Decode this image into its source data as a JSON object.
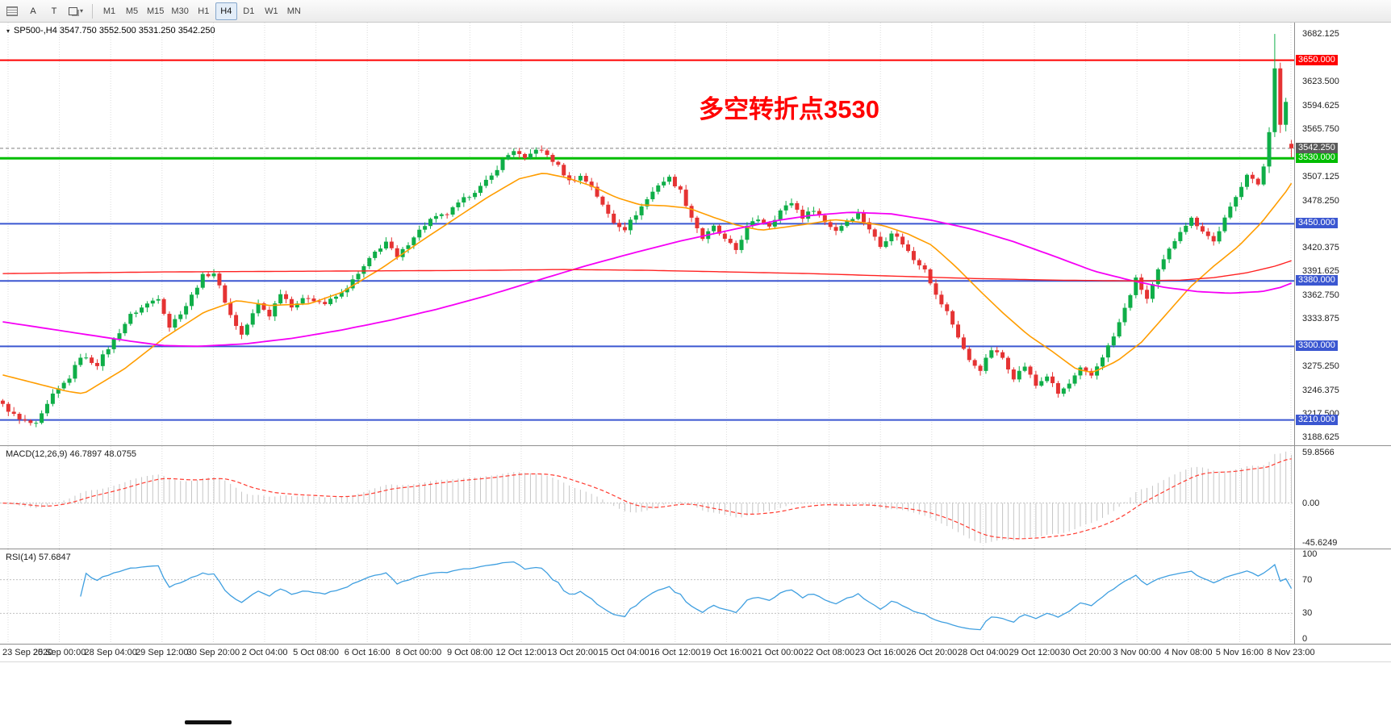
{
  "toolbar": {
    "tool_a_label": "A",
    "tool_t_label": "T",
    "timeframes": [
      "M1",
      "M5",
      "M15",
      "M30",
      "H1",
      "H4",
      "D1",
      "W1",
      "MN"
    ],
    "active_timeframe": "H4"
  },
  "chart": {
    "title_line": "SP500-,H4  3547.750 3552.500 3531.250 3542.250",
    "symbol": "SP500-",
    "timeframe": "H4",
    "annotation": {
      "text": "多空转折点3530",
      "color": "#ff0000"
    },
    "current_price": "3542.250"
  },
  "macd": {
    "title": "MACD(12,26,9) 46.7897 48.0755",
    "max_label": "59.8566",
    "zero_label": "0.00",
    "min_label": "-45.6249"
  },
  "rsi": {
    "title": "RSI(14) 57.6847",
    "scale_labels": [
      [
        100,
        "100"
      ],
      [
        70,
        "70"
      ],
      [
        30,
        "30"
      ],
      [
        0,
        "0"
      ]
    ]
  },
  "chart_data": {
    "type": "candlestick",
    "symbol": "SP500-",
    "timeframe": "H4",
    "last_ohlc": {
      "open": 3547.75,
      "high": 3552.5,
      "low": 3531.25,
      "close": 3542.25
    },
    "num_candles": 233,
    "price_range": [
      3179,
      3696
    ],
    "grid_color": "#dcdcdc",
    "colors": {
      "up": "#0fae48",
      "down": "#e53333"
    },
    "close_waypoints": [
      [
        0,
        3228
      ],
      [
        3,
        3210
      ],
      [
        6,
        3204
      ],
      [
        9,
        3240
      ],
      [
        12,
        3262
      ],
      [
        14,
        3288
      ],
      [
        17,
        3278
      ],
      [
        20,
        3308
      ],
      [
        23,
        3338
      ],
      [
        26,
        3352
      ],
      [
        28,
        3360
      ],
      [
        30,
        3324
      ],
      [
        33,
        3350
      ],
      [
        36,
        3386
      ],
      [
        38,
        3390
      ],
      [
        41,
        3338
      ],
      [
        43,
        3314
      ],
      [
        46,
        3352
      ],
      [
        48,
        3338
      ],
      [
        50,
        3366
      ],
      [
        52,
        3350
      ],
      [
        55,
        3360
      ],
      [
        58,
        3352
      ],
      [
        61,
        3365
      ],
      [
        64,
        3388
      ],
      [
        67,
        3415
      ],
      [
        69,
        3428
      ],
      [
        71,
        3408
      ],
      [
        74,
        3435
      ],
      [
        77,
        3455
      ],
      [
        80,
        3462
      ],
      [
        83,
        3480
      ],
      [
        86,
        3495
      ],
      [
        88,
        3508
      ],
      [
        90,
        3528
      ],
      [
        92,
        3540
      ],
      [
        94,
        3528
      ],
      [
        96,
        3542
      ],
      [
        98,
        3534
      ],
      [
        100,
        3520
      ],
      [
        102,
        3502
      ],
      [
        104,
        3508
      ],
      [
        106,
        3496
      ],
      [
        108,
        3472
      ],
      [
        110,
        3452
      ],
      [
        112,
        3444
      ],
      [
        114,
        3462
      ],
      [
        116,
        3480
      ],
      [
        118,
        3498
      ],
      [
        120,
        3506
      ],
      [
        122,
        3490
      ],
      [
        124,
        3458
      ],
      [
        126,
        3432
      ],
      [
        128,
        3446
      ],
      [
        130,
        3430
      ],
      [
        132,
        3418
      ],
      [
        134,
        3446
      ],
      [
        136,
        3456
      ],
      [
        138,
        3448
      ],
      [
        140,
        3466
      ],
      [
        142,
        3476
      ],
      [
        144,
        3458
      ],
      [
        146,
        3468
      ],
      [
        148,
        3452
      ],
      [
        150,
        3442
      ],
      [
        152,
        3454
      ],
      [
        154,
        3462
      ],
      [
        156,
        3444
      ],
      [
        158,
        3422
      ],
      [
        160,
        3440
      ],
      [
        162,
        3426
      ],
      [
        164,
        3406
      ],
      [
        166,
        3396
      ],
      [
        168,
        3362
      ],
      [
        170,
        3342
      ],
      [
        172,
        3312
      ],
      [
        174,
        3282
      ],
      [
        176,
        3272
      ],
      [
        178,
        3296
      ],
      [
        180,
        3286
      ],
      [
        182,
        3262
      ],
      [
        184,
        3276
      ],
      [
        186,
        3252
      ],
      [
        188,
        3264
      ],
      [
        190,
        3242
      ],
      [
        192,
        3254
      ],
      [
        194,
        3272
      ],
      [
        196,
        3264
      ],
      [
        198,
        3288
      ],
      [
        200,
        3312
      ],
      [
        202,
        3346
      ],
      [
        204,
        3382
      ],
      [
        206,
        3358
      ],
      [
        208,
        3392
      ],
      [
        210,
        3418
      ],
      [
        212,
        3442
      ],
      [
        214,
        3456
      ],
      [
        216,
        3442
      ],
      [
        218,
        3428
      ],
      [
        220,
        3456
      ],
      [
        222,
        3482
      ],
      [
        224,
        3512
      ],
      [
        226,
        3498
      ],
      [
        227,
        3520
      ],
      [
        228,
        3562
      ],
      [
        229,
        3640
      ],
      [
        230,
        3572
      ],
      [
        231,
        3600
      ],
      [
        232,
        3542.25
      ]
    ],
    "overrides": {
      "228": [
        3520,
        3568,
        3512,
        3562
      ],
      "229": [
        3562,
        3682.125,
        3556,
        3640
      ],
      "230": [
        3640,
        3647,
        3561,
        3571
      ],
      "231": [
        3571,
        3604,
        3563,
        3599
      ],
      "232": [
        3547.75,
        3552.5,
        3531.25,
        3542.25
      ]
    },
    "h_lines": [
      {
        "price": 3650,
        "label": "3650.000",
        "color": "#ff0000",
        "width": 2
      },
      {
        "price": 3530,
        "label": "3530.000",
        "color": "#00bd00",
        "width": 3
      },
      {
        "price": 3450,
        "label": "3450.000",
        "color": "#3b57d1",
        "width": 2
      },
      {
        "price": 3380,
        "label": "3380.000",
        "color": "#3b57d1",
        "width": 2
      },
      {
        "price": 3300,
        "label": "3300.000",
        "color": "#3b57d1",
        "width": 2
      },
      {
        "price": 3210,
        "label": "3210.000",
        "color": "#3b57d1",
        "width": 2
      }
    ],
    "current_price_line": {
      "price": 3542.25,
      "label": "3542.250",
      "color": "#808080",
      "tag_bg": "#5a5a5a"
    },
    "ma_lines": [
      {
        "name": "ma-orange",
        "color": "#ff9d00",
        "width": 1.6,
        "points": [
          [
            0,
            3265
          ],
          [
            11.6,
            3245
          ],
          [
            14.5,
            3242
          ],
          [
            21.8,
            3272
          ],
          [
            29,
            3310
          ],
          [
            36.3,
            3342
          ],
          [
            42.2,
            3356
          ],
          [
            48,
            3350
          ],
          [
            55.2,
            3352
          ],
          [
            61,
            3366
          ],
          [
            68.3,
            3396
          ],
          [
            75.6,
            3430
          ],
          [
            81.4,
            3456
          ],
          [
            87.2,
            3482
          ],
          [
            93,
            3505
          ],
          [
            97.4,
            3512
          ],
          [
            101.7,
            3506
          ],
          [
            106.1,
            3496
          ],
          [
            110.5,
            3482
          ],
          [
            114.8,
            3473
          ],
          [
            119.2,
            3472
          ],
          [
            123.5,
            3469
          ],
          [
            127.9,
            3458
          ],
          [
            132.3,
            3448
          ],
          [
            136.6,
            3442
          ],
          [
            141,
            3446
          ],
          [
            145.3,
            3450
          ],
          [
            149.7,
            3455
          ],
          [
            154.1,
            3452
          ],
          [
            158.4,
            3448
          ],
          [
            162.8,
            3438
          ],
          [
            167.2,
            3424
          ],
          [
            171.5,
            3398
          ],
          [
            175.9,
            3368
          ],
          [
            180.2,
            3340
          ],
          [
            184.6,
            3314
          ],
          [
            188.9,
            3294
          ],
          [
            193.3,
            3272
          ],
          [
            196.2,
            3268
          ],
          [
            200.6,
            3282
          ],
          [
            205,
            3305
          ],
          [
            209.3,
            3338
          ],
          [
            213.7,
            3372
          ],
          [
            218,
            3398
          ],
          [
            222.4,
            3422
          ],
          [
            226.7,
            3452
          ],
          [
            231.1,
            3490
          ],
          [
            233,
            3510
          ]
        ]
      },
      {
        "name": "ma-magenta",
        "color": "#f500f5",
        "width": 1.8,
        "points": [
          [
            0,
            3330
          ],
          [
            11.6,
            3318
          ],
          [
            23.3,
            3306
          ],
          [
            29,
            3301
          ],
          [
            34.9,
            3300
          ],
          [
            43.6,
            3303
          ],
          [
            52.3,
            3310
          ],
          [
            61,
            3320
          ],
          [
            69.8,
            3332
          ],
          [
            78.5,
            3346
          ],
          [
            87.2,
            3362
          ],
          [
            95.9,
            3380
          ],
          [
            104.7,
            3398
          ],
          [
            113.4,
            3414
          ],
          [
            122.1,
            3429
          ],
          [
            130.8,
            3442
          ],
          [
            139.5,
            3454
          ],
          [
            145.3,
            3460
          ],
          [
            152.6,
            3464
          ],
          [
            160,
            3462
          ],
          [
            167.4,
            3454
          ],
          [
            174.7,
            3443
          ],
          [
            182,
            3428
          ],
          [
            189.4,
            3410
          ],
          [
            196.5,
            3392
          ],
          [
            203.5,
            3380
          ],
          [
            209.3,
            3372
          ],
          [
            215.1,
            3367
          ],
          [
            220.9,
            3365
          ],
          [
            226.7,
            3367
          ],
          [
            230,
            3372
          ],
          [
            233,
            3380
          ]
        ]
      },
      {
        "name": "ma-red",
        "color": "#ff2222",
        "width": 1.4,
        "points": [
          [
            0,
            3389
          ],
          [
            29,
            3391
          ],
          [
            58,
            3392
          ],
          [
            87.2,
            3393
          ],
          [
            101,
            3394
          ],
          [
            116,
            3393
          ],
          [
            130.8,
            3391
          ],
          [
            145.3,
            3389
          ],
          [
            160,
            3386
          ],
          [
            174.7,
            3383
          ],
          [
            189.4,
            3381
          ],
          [
            203.5,
            3380
          ],
          [
            212,
            3381
          ],
          [
            218,
            3384
          ],
          [
            224,
            3390
          ],
          [
            229,
            3398
          ],
          [
            233,
            3407
          ]
        ]
      }
    ],
    "y_ticks": [
      [
        3682.125,
        "3682.125"
      ],
      [
        3623.5,
        "3623.500"
      ],
      [
        3594.625,
        "3594.625"
      ],
      [
        3565.75,
        "3565.750"
      ],
      [
        3507.125,
        "3507.125"
      ],
      [
        3478.25,
        "3478.250"
      ],
      [
        3420.375,
        "3420.375"
      ],
      [
        3391.625,
        "3391.625"
      ],
      [
        3362.75,
        "3362.750"
      ],
      [
        3333.875,
        "3333.875"
      ],
      [
        3275.25,
        "3275.250"
      ],
      [
        3246.375,
        "3246.375"
      ],
      [
        3217.5,
        "3217.500"
      ],
      [
        3188.625,
        "3188.625"
      ]
    ],
    "x_labels": [
      "23 Sep 2020",
      "25 Sep 00:00",
      "28 Sep 04:00",
      "29 Sep 12:00",
      "30 Sep 20:00",
      "2 Oct 04:00",
      "5 Oct 08:00",
      "6 Oct 16:00",
      "8 Oct 00:00",
      "9 Oct 08:00",
      "12 Oct 12:00",
      "13 Oct 20:00",
      "15 Oct 04:00",
      "16 Oct 12:00",
      "19 Oct 16:00",
      "21 Oct 00:00",
      "22 Oct 08:00",
      "23 Oct 16:00",
      "26 Oct 20:00",
      "28 Oct 04:00",
      "29 Oct 12:00",
      "30 Oct 20:00",
      "3 Nov 00:00",
      "4 Nov 08:00",
      "5 Nov 16:00",
      "8 Nov 23:00"
    ],
    "macd": {
      "fast": 12,
      "slow": 26,
      "signal": 9,
      "hist_color": "#c6c6c6",
      "signal_color": "#ff3b30"
    },
    "rsi": {
      "period": 14,
      "color": "#3f9fe0",
      "levels": [
        30,
        70
      ]
    }
  }
}
